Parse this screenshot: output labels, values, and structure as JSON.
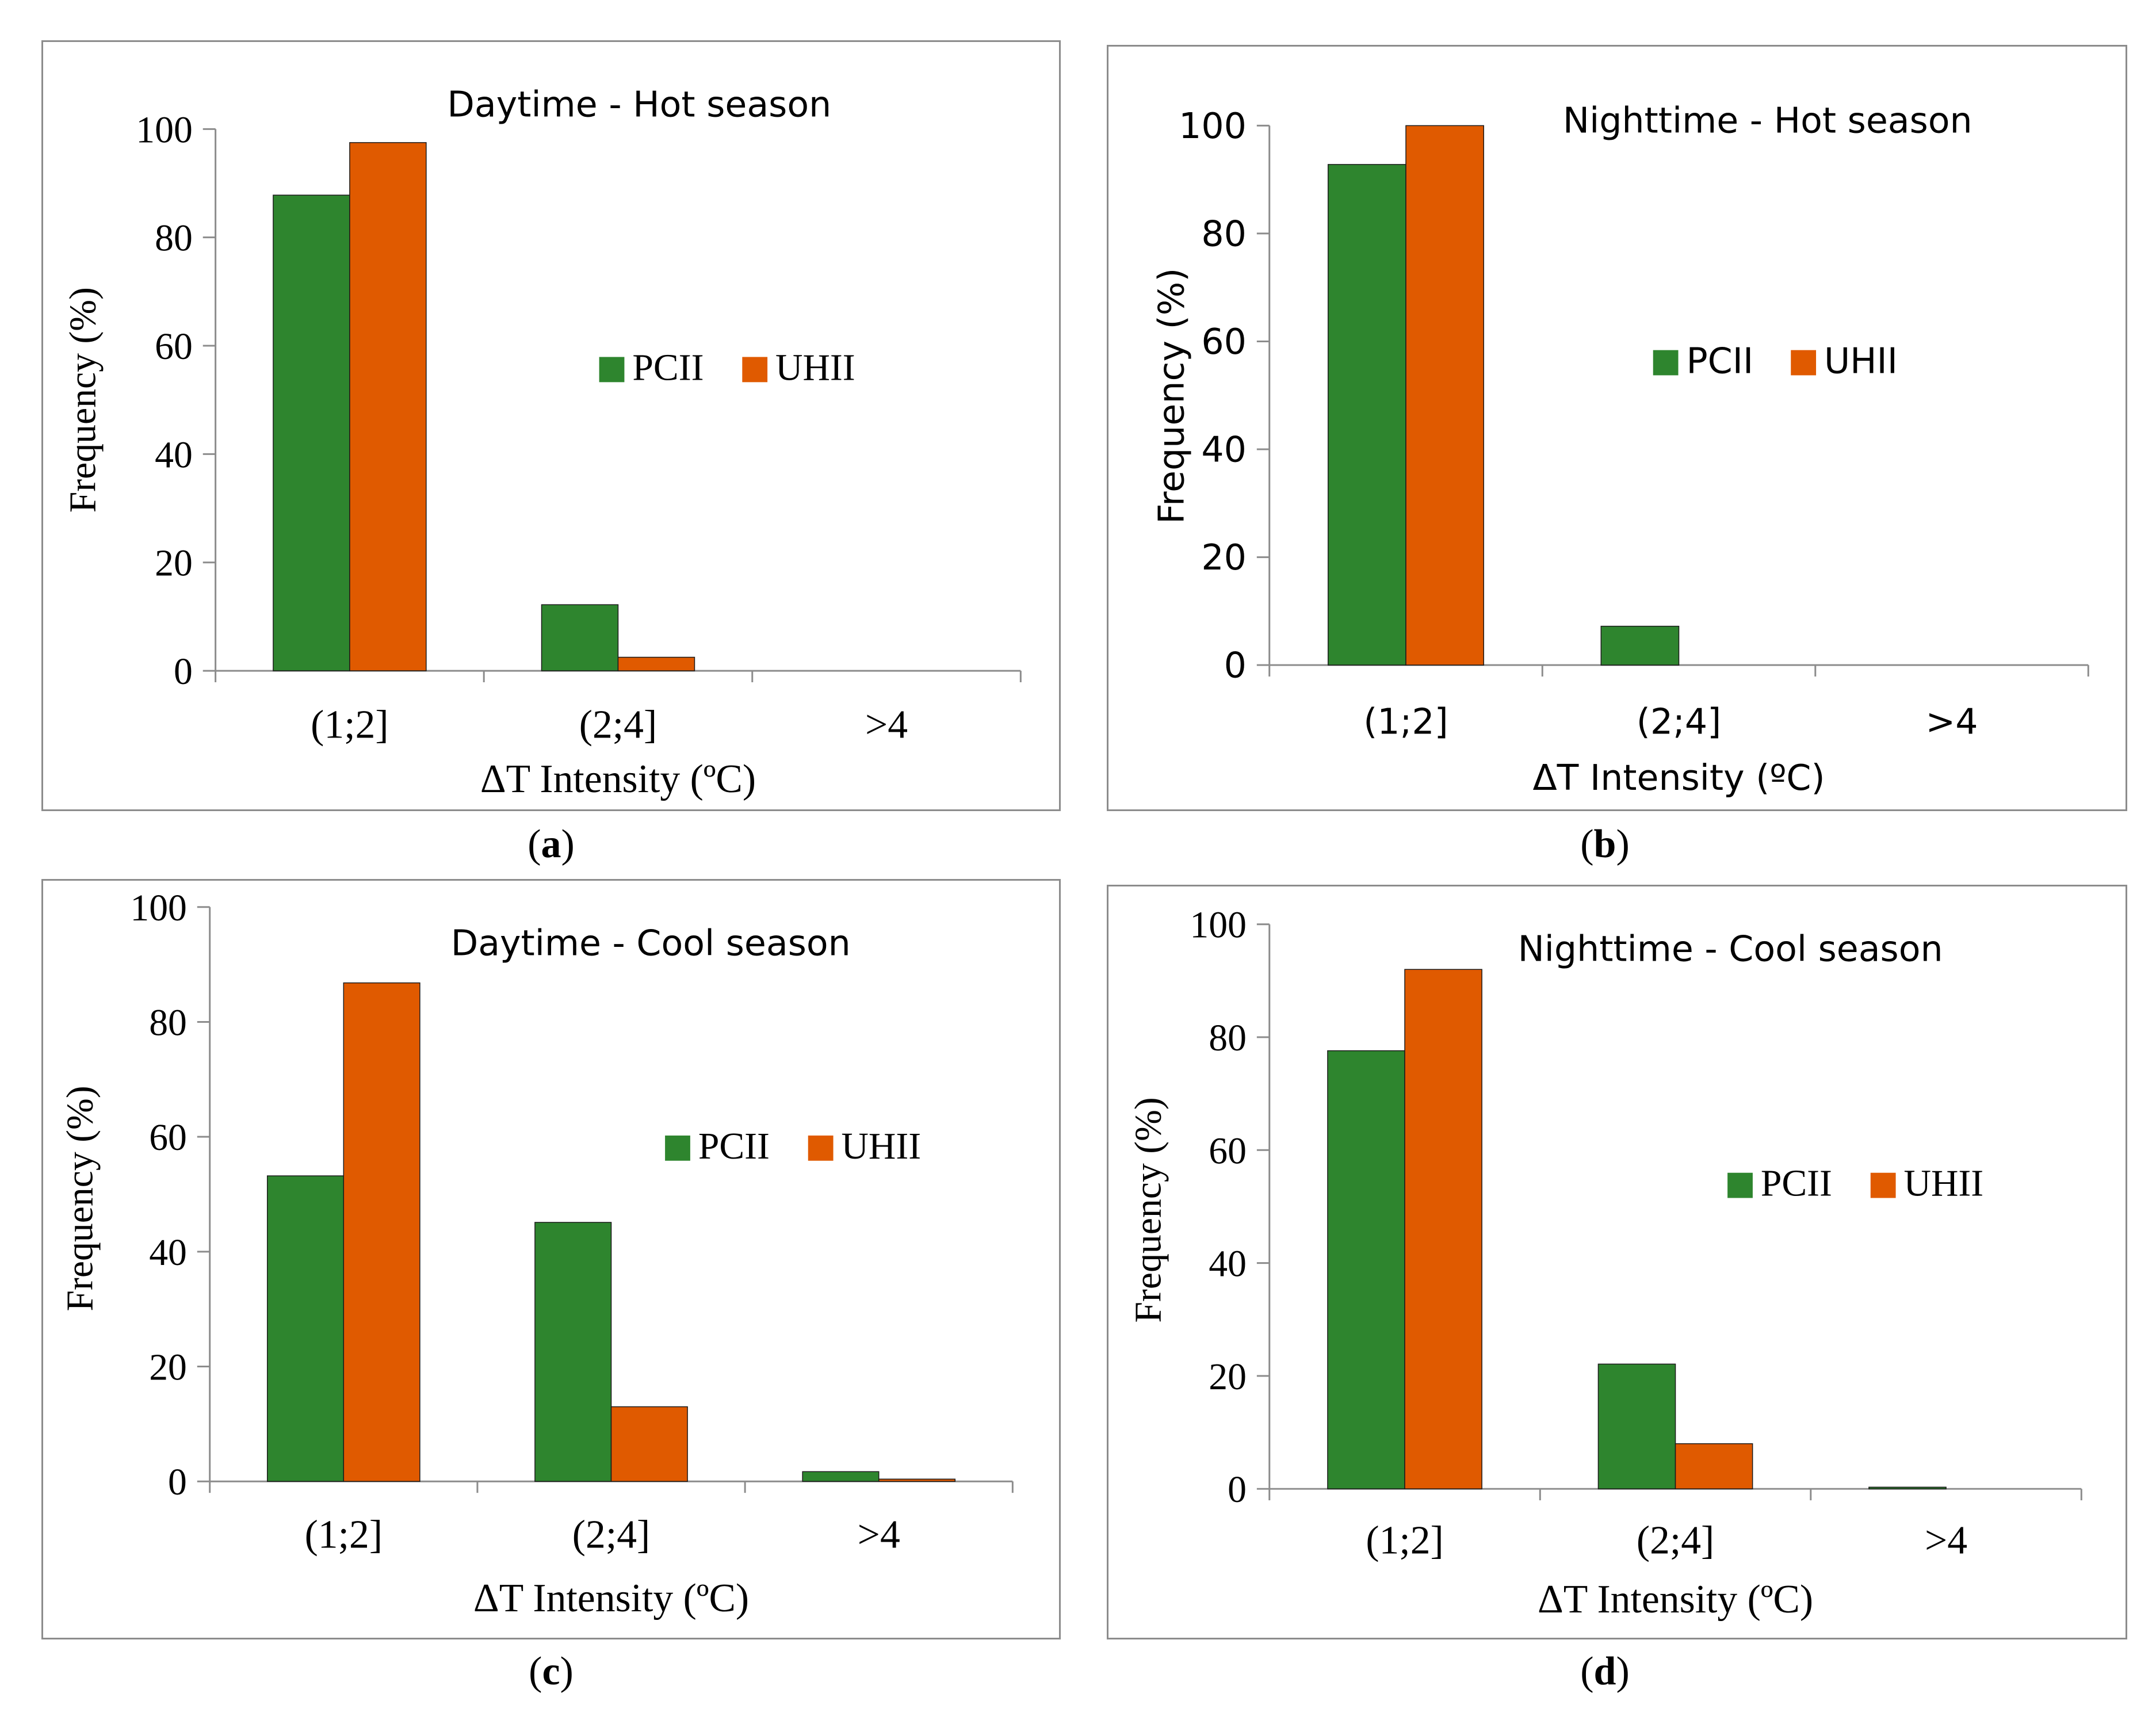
{
  "colors": {
    "pcii": "#2e852e",
    "uhii": "#e05a00",
    "axis": "#8c8c8c",
    "text": "#000000"
  },
  "chart_data": [
    {
      "type": "bar",
      "title": "Daytime - Hot season",
      "xlabel": "ΔT Intensity (ºC)",
      "ylabel": "Frequency (%)",
      "ylim": [
        0,
        100
      ],
      "yticks": [
        "0",
        "20",
        "40",
        "60",
        "80",
        "100"
      ],
      "categories": [
        "(1;2]",
        "(2;4]",
        ">4"
      ],
      "series": [
        {
          "name": "PCII",
          "values": [
            87.8,
            12.2,
            0
          ]
        },
        {
          "name": "UHII",
          "values": [
            97.5,
            2.5,
            0
          ]
        }
      ],
      "caption_letter": "a",
      "legend": "center-right"
    },
    {
      "type": "bar",
      "title": "Nighttime - Hot season",
      "xlabel": "ΔT Intensity (ºC)",
      "ylabel": "Frequency (%)",
      "ylim": [
        0,
        100
      ],
      "yticks": [
        "0",
        "20",
        "40",
        "60",
        "80",
        "100"
      ],
      "categories": [
        "(1;2]",
        "(2;4]",
        ">4"
      ],
      "series": [
        {
          "name": "PCII",
          "values": [
            92.8,
            7.2,
            0
          ]
        },
        {
          "name": "UHII",
          "values": [
            100,
            0,
            0
          ]
        }
      ],
      "caption_letter": "b",
      "legend": "center-right"
    },
    {
      "type": "bar",
      "title": "Daytime - Cool season",
      "xlabel": "ΔT Intensity (ºC)",
      "ylabel": "Frequency (%)",
      "ylim": [
        0,
        100
      ],
      "yticks": [
        "0",
        "20",
        "40",
        "60",
        "80",
        "100"
      ],
      "categories": [
        "(1;2]",
        "(2;4]",
        ">4"
      ],
      "series": [
        {
          "name": "PCII",
          "values": [
            53.2,
            45.1,
            1.7
          ]
        },
        {
          "name": "UHII",
          "values": [
            86.8,
            13.0,
            0.4
          ]
        }
      ],
      "caption_letter": "c",
      "legend": "center-right"
    },
    {
      "type": "bar",
      "title": "Nighttime - Cool season",
      "xlabel": "ΔT Intensity (ºC)",
      "ylabel": "Frequency (%)",
      "ylim": [
        0,
        100
      ],
      "yticks": [
        "0",
        "20",
        "40",
        "60",
        "80",
        "100"
      ],
      "categories": [
        "(1;2]",
        "(2;4]",
        ">4"
      ],
      "series": [
        {
          "name": "PCII",
          "values": [
            77.6,
            22.1,
            0.3
          ]
        },
        {
          "name": "UHII",
          "values": [
            92.0,
            8.0,
            0
          ]
        }
      ],
      "caption_letter": "d",
      "legend": "center-right"
    }
  ]
}
